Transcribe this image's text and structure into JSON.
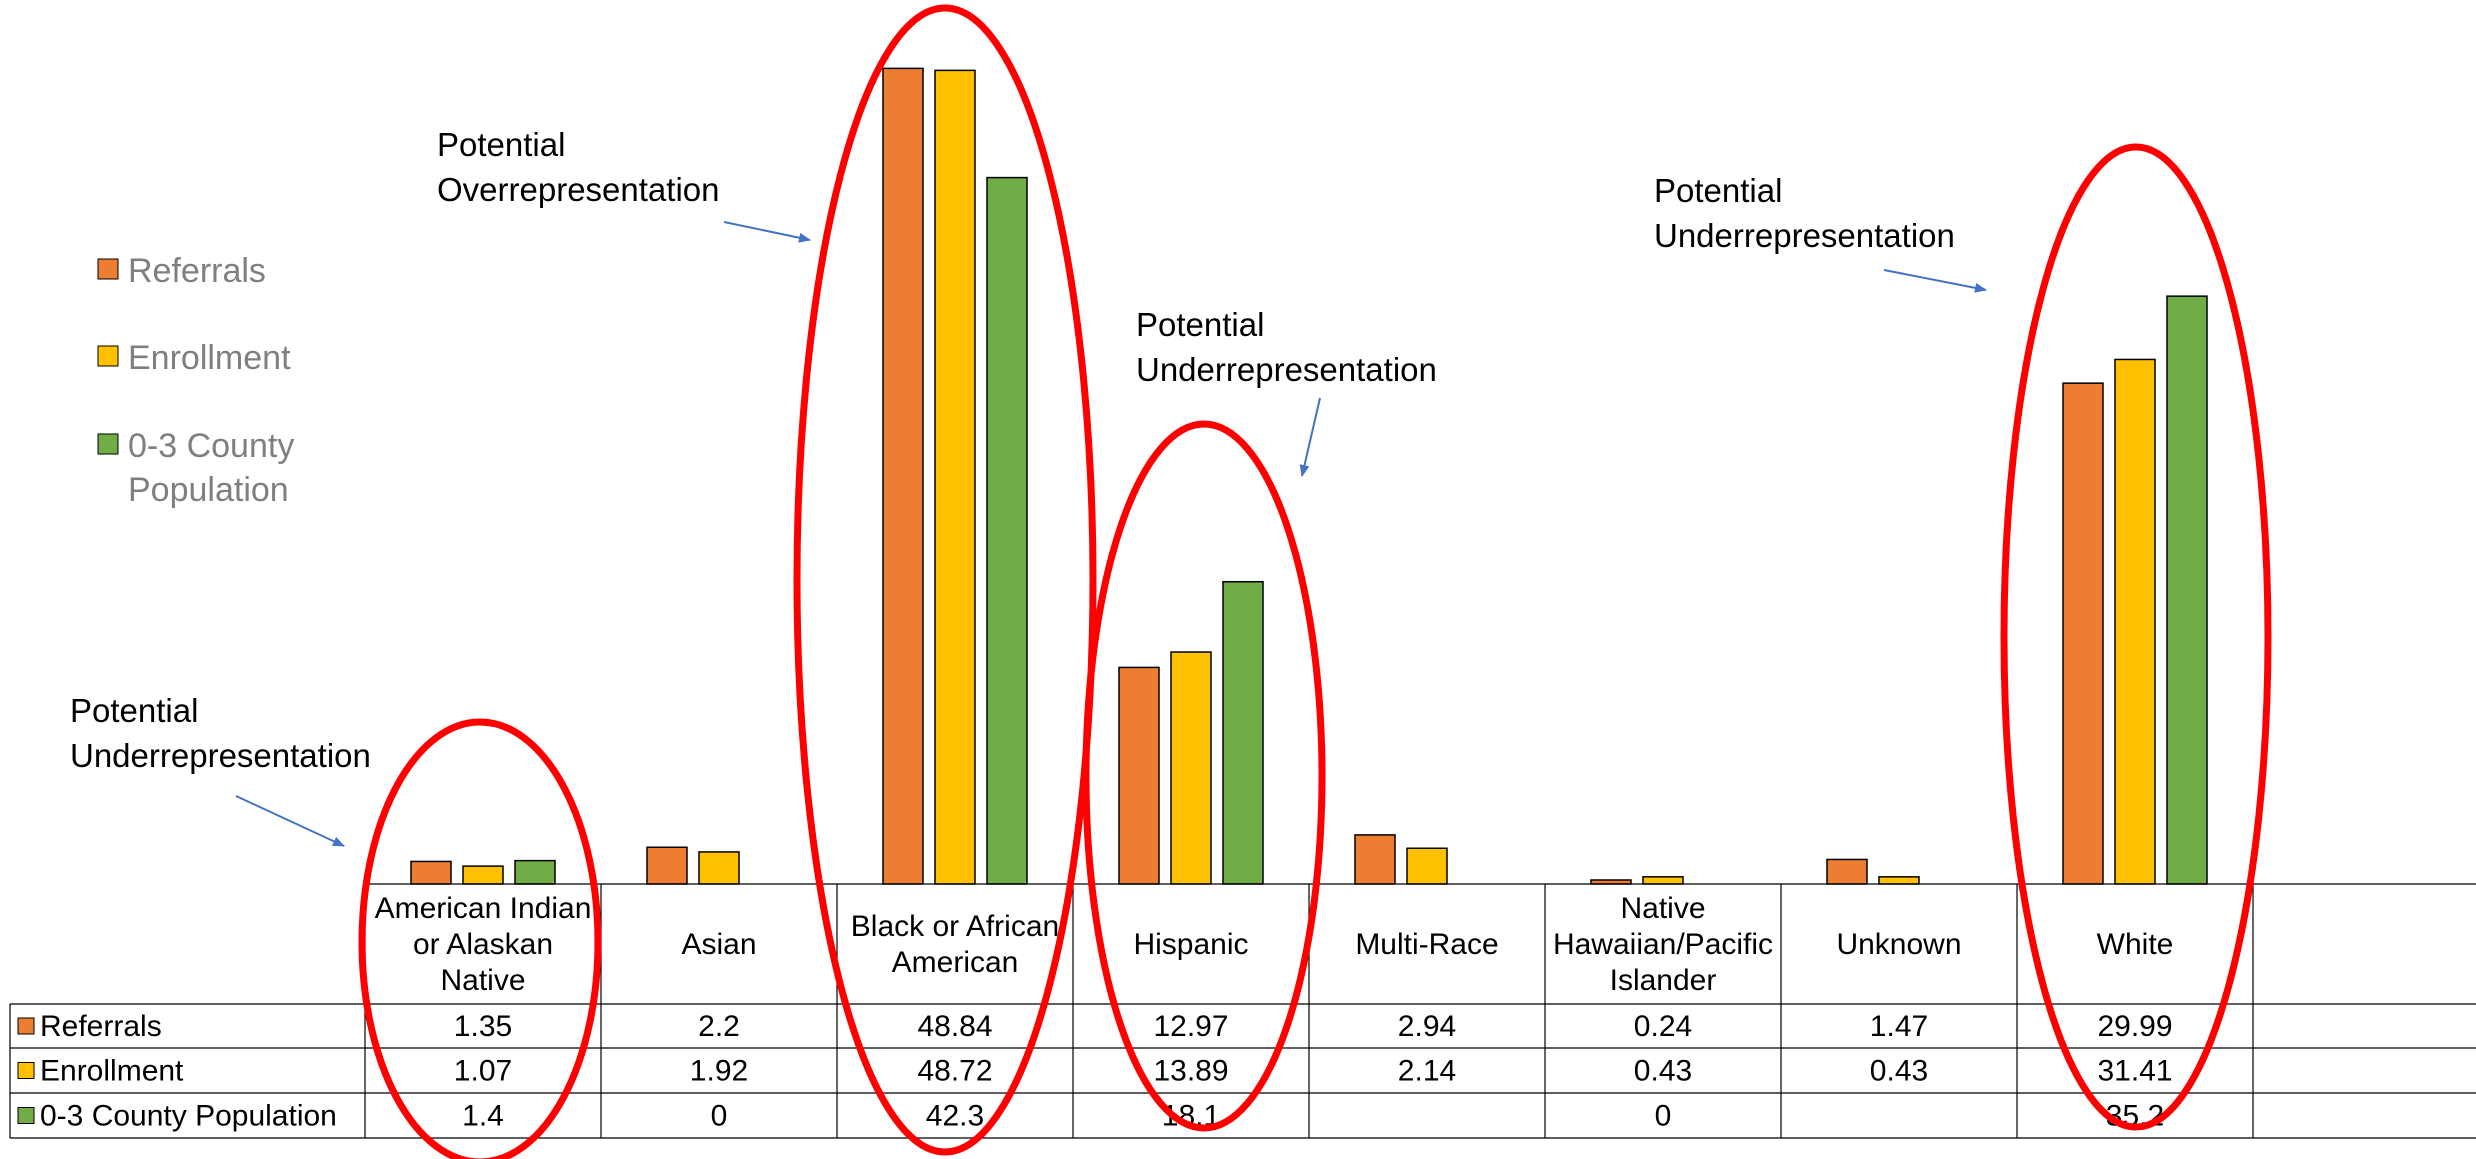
{
  "chart_data": {
    "type": "bar",
    "categories": [
      "American Indian or Alaskan Native",
      "Asian",
      "Black or African American",
      "Hispanic",
      "Multi-Race",
      "Native Hawaiian/Pacific Islander",
      "Unknown",
      "White"
    ],
    "series": [
      {
        "name": "Referrals",
        "color": "#ED7D31",
        "values": [
          1.35,
          2.2,
          48.84,
          12.97,
          2.94,
          0.24,
          1.47,
          29.99
        ],
        "labels": [
          "1.35",
          "2.2",
          "48.84",
          "12.97",
          "2.94",
          "0.24",
          "1.47",
          "29.99"
        ]
      },
      {
        "name": "Enrollment",
        "color": "#FFC000",
        "values": [
          1.07,
          1.92,
          48.72,
          13.89,
          2.14,
          0.43,
          0.43,
          31.41
        ],
        "labels": [
          "1.07",
          "1.92",
          "48.72",
          "13.89",
          "2.14",
          "0.43",
          "0.43",
          "31.41"
        ]
      },
      {
        "name": "0-3 County Population",
        "color": "#70AD47",
        "values": [
          1.4,
          0,
          42.3,
          18.1,
          null,
          0,
          null,
          35.2
        ],
        "labels": [
          "1.4",
          "0",
          "42.3",
          "18.1",
          "",
          "0",
          "",
          "35.2"
        ]
      }
    ],
    "legend": {
      "placement": "left",
      "entries": [
        "Referrals",
        "Enrollment",
        "0-3 County Population"
      ]
    },
    "annotations": [
      "Potential Underrepresentation",
      "Potential Overrepresentation",
      "Potential Underrepresentation",
      "Potential Underrepresentation"
    ],
    "highlight_color": "#FF0000",
    "arrow_color": "#4472C4",
    "data_table": true,
    "ylim": [
      0,
      50
    ],
    "grid": false
  }
}
